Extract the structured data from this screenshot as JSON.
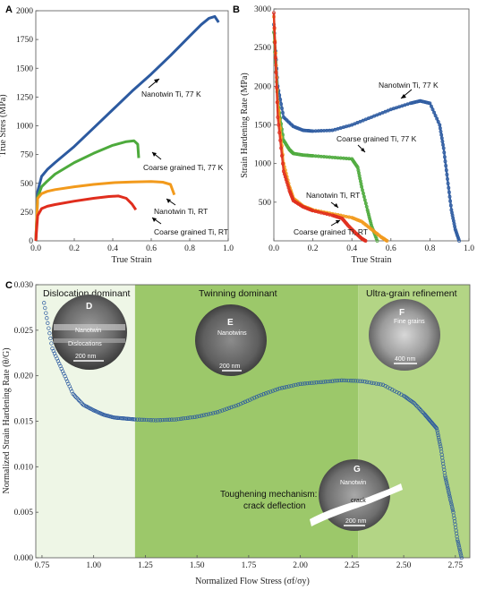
{
  "panels": {
    "A": {
      "letter": "A",
      "ylabel": "True Stres (MPa)",
      "xlabel": "True Strain",
      "xlim": [
        0,
        1.0
      ],
      "ylim": [
        0,
        2000
      ],
      "xticks": [
        "0.0",
        "0.2",
        "0.4",
        "0.6",
        "0.8",
        "1.0"
      ],
      "yticks": [
        "0",
        "250",
        "500",
        "750",
        "1000",
        "1250",
        "1500",
        "1750",
        "2000"
      ],
      "annotations": {
        "nt77": "Nanotwin Ti, 77 K",
        "cg77": "Coarse grained Ti, 77 K",
        "ntrt": "Nanotwin Ti, RT",
        "cgrt": "Coarse grained Ti, RT"
      }
    },
    "B": {
      "letter": "B",
      "ylabel": "Strain Hardening Rate (MPa)",
      "xlabel": "True Strain",
      "xlim": [
        0,
        1.0
      ],
      "ylim": [
        0,
        3000
      ],
      "xticks": [
        "0.0",
        "0.2",
        "0.4",
        "0.6",
        "0.8",
        "1.0"
      ],
      "yticks": [
        "500",
        "1000",
        "1500",
        "2000",
        "2500",
        "3000"
      ],
      "annotations": {
        "nt77": "Nanotwin Ti, 77 K",
        "cg77": "Coarse grained Ti, 77 K",
        "ntrt": "Nanotwin Ti, RT",
        "cgrt": "Coarse grained Ti, RT"
      }
    },
    "C": {
      "letter": "C",
      "ylabel": "Normalized Strain Hardening Rate (θ/G)",
      "xlabel": "Normalized Flow Stress (σf/σy)",
      "xlim": [
        0.72,
        2.82
      ],
      "ylim": [
        0,
        0.03
      ],
      "xticks": [
        "0.75",
        "1.00",
        "1.25",
        "1.50",
        "1.75",
        "2.00",
        "2.25",
        "2.50",
        "2.75"
      ],
      "yticks": [
        "0.000",
        "0.005",
        "0.010",
        "0.015",
        "0.020",
        "0.025",
        "0.030"
      ],
      "regions": {
        "r1": "Dislocation dominant",
        "r2": "Twinning dominant",
        "r3": "Ultra-grain refinement"
      },
      "toughening_line1": "Toughening mechanism:",
      "toughening_line2": "crack deflection",
      "micrographs": {
        "D": {
          "label": "D",
          "text1": "Nanotwin",
          "text2": "Dislocations",
          "scale": "200 nm"
        },
        "E": {
          "label": "E",
          "text1": "Nanotwins",
          "scale": "200 nm"
        },
        "F": {
          "label": "F",
          "text1": "Fine grains",
          "scale": "400 nm"
        },
        "G": {
          "label": "G",
          "text1": "Nanotwin",
          "text2": "crack",
          "scale": "200 nm"
        }
      }
    }
  },
  "colors": {
    "nt77": "#2c5aa0",
    "cg77": "#4daa3c",
    "ntrt": "#f29a1c",
    "cgrt": "#e02d1d",
    "region1": "#eef6e6",
    "region2": "#9cc86a",
    "region3": "#b3d585"
  },
  "chart_data": [
    {
      "type": "line",
      "panel": "A",
      "xlabel": "True Strain",
      "ylabel": "True Stres (MPa)",
      "xlim": [
        0,
        1.0
      ],
      "ylim": [
        0,
        2000
      ],
      "series": [
        {
          "name": "Nanotwin Ti, 77 K",
          "x": [
            0,
            0.01,
            0.03,
            0.06,
            0.1,
            0.2,
            0.3,
            0.4,
            0.5,
            0.6,
            0.7,
            0.8,
            0.86,
            0.9,
            0.93,
            0.95
          ],
          "y": [
            0,
            430,
            560,
            620,
            680,
            820,
            980,
            1140,
            1300,
            1450,
            1610,
            1780,
            1880,
            1935,
            1950,
            1900
          ]
        },
        {
          "name": "Coarse grained Ti, 77 K",
          "x": [
            0,
            0.01,
            0.03,
            0.06,
            0.1,
            0.2,
            0.3,
            0.4,
            0.47,
            0.51,
            0.53,
            0.535
          ],
          "y": [
            0,
            380,
            470,
            520,
            580,
            680,
            760,
            830,
            862,
            870,
            840,
            720
          ]
        },
        {
          "name": "Nanotwin Ti, RT",
          "x": [
            0,
            0.01,
            0.03,
            0.06,
            0.1,
            0.2,
            0.3,
            0.4,
            0.5,
            0.6,
            0.66,
            0.7,
            0.72
          ],
          "y": [
            0,
            370,
            410,
            430,
            445,
            470,
            490,
            505,
            512,
            515,
            510,
            490,
            400
          ]
        },
        {
          "name": "Coarse grained Ti, RT",
          "x": [
            0,
            0.01,
            0.03,
            0.06,
            0.1,
            0.2,
            0.3,
            0.38,
            0.43,
            0.47,
            0.5,
            0.52
          ],
          "y": [
            0,
            220,
            280,
            300,
            315,
            345,
            370,
            385,
            390,
            370,
            320,
            270
          ]
        }
      ]
    },
    {
      "type": "scatter",
      "panel": "B",
      "xlabel": "True Strain",
      "ylabel": "Strain Hardening Rate (MPa)",
      "xlim": [
        0,
        1.0
      ],
      "ylim": [
        0,
        3000
      ],
      "series": [
        {
          "name": "Nanotwin Ti, 77 K",
          "x": [
            0.0,
            0.02,
            0.05,
            0.1,
            0.15,
            0.2,
            0.3,
            0.4,
            0.5,
            0.6,
            0.7,
            0.75,
            0.8,
            0.85,
            0.87,
            0.89,
            0.91,
            0.93,
            0.95
          ],
          "y": [
            2800,
            2000,
            1600,
            1480,
            1430,
            1420,
            1430,
            1500,
            1600,
            1700,
            1780,
            1810,
            1780,
            1500,
            1200,
            800,
            400,
            150,
            0
          ]
        },
        {
          "name": "Coarse grained Ti, 77 K",
          "x": [
            0.0,
            0.02,
            0.05,
            0.08,
            0.1,
            0.15,
            0.2,
            0.3,
            0.4,
            0.43,
            0.45,
            0.48,
            0.5,
            0.53
          ],
          "y": [
            2700,
            1800,
            1300,
            1180,
            1130,
            1110,
            1100,
            1080,
            1060,
            950,
            700,
            400,
            200,
            0
          ]
        },
        {
          "name": "Nanotwin Ti, RT",
          "x": [
            0.0,
            0.02,
            0.05,
            0.08,
            0.1,
            0.15,
            0.2,
            0.3,
            0.4,
            0.45,
            0.5,
            0.55,
            0.58
          ],
          "y": [
            2900,
            1800,
            1000,
            700,
            550,
            450,
            400,
            350,
            300,
            250,
            150,
            50,
            0
          ]
        },
        {
          "name": "Coarse grained Ti, RT",
          "x": [
            0.0,
            0.02,
            0.05,
            0.08,
            0.1,
            0.15,
            0.2,
            0.3,
            0.35,
            0.38,
            0.42,
            0.45,
            0.47
          ],
          "y": [
            2950,
            1600,
            900,
            650,
            520,
            440,
            390,
            330,
            290,
            200,
            100,
            30,
            0
          ]
        }
      ]
    },
    {
      "type": "scatter",
      "panel": "C",
      "xlabel": "Normalized Flow Stress (σf/σy)",
      "ylabel": "Normalized Strain Hardening Rate (θ/G)",
      "xlim": [
        0.72,
        2.82
      ],
      "ylim": [
        0,
        0.03
      ],
      "series": [
        {
          "x": [
            0.76,
            0.8,
            0.85,
            0.9,
            0.95,
            1.0,
            1.05,
            1.1,
            1.15,
            1.2,
            1.3,
            1.4,
            1.5,
            1.6,
            1.7,
            1.8,
            1.9,
            2.0,
            2.1,
            2.2,
            2.3,
            2.4,
            2.5,
            2.55,
            2.6,
            2.63,
            2.66,
            2.68,
            2.7,
            2.72,
            2.74,
            2.76,
            2.78
          ],
          "y": [
            0.028,
            0.023,
            0.0205,
            0.018,
            0.0168,
            0.0162,
            0.0157,
            0.0154,
            0.0153,
            0.0152,
            0.0151,
            0.0152,
            0.0155,
            0.016,
            0.0168,
            0.0178,
            0.0186,
            0.0191,
            0.0193,
            0.0195,
            0.0194,
            0.019,
            0.0178,
            0.017,
            0.0158,
            0.015,
            0.0142,
            0.012,
            0.009,
            0.007,
            0.005,
            0.002,
            0.0
          ]
        }
      ]
    }
  ]
}
